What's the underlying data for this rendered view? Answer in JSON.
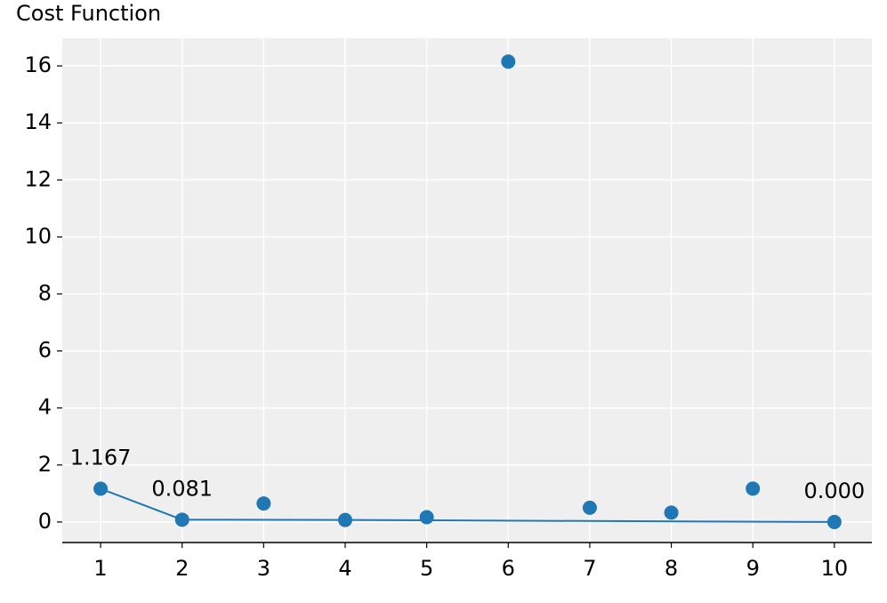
{
  "chart_data": {
    "type": "scatter",
    "title": "Cost Function",
    "series": [
      {
        "type": "scatter",
        "color": "#1f77b4",
        "x": [
          1,
          2,
          3,
          4,
          5,
          6,
          7,
          8,
          9,
          10
        ],
        "values": [
          1.167,
          0.081,
          0.65,
          0.07,
          0.17,
          16.15,
          0.5,
          0.33,
          1.17,
          0.0
        ]
      },
      {
        "type": "line",
        "color": "#1f77b4",
        "x": [
          1,
          2,
          4,
          10
        ],
        "values": [
          1.167,
          0.081,
          0.07,
          0.0
        ]
      }
    ],
    "annotations": [
      {
        "text": "1.167",
        "x": 1,
        "y": 1.167
      },
      {
        "text": "0.081",
        "x": 2,
        "y": 0.081
      },
      {
        "text": "0.000",
        "x": 10,
        "y": 0.0
      }
    ],
    "xlim": [
      0.53,
      10.46
    ],
    "xticks": [
      1,
      2,
      3,
      4,
      5,
      6,
      7,
      8,
      9,
      10
    ],
    "ylim": [
      -0.72,
      16.97
    ],
    "yticks": [
      0,
      2,
      4,
      6,
      8,
      10,
      12,
      14,
      16
    ],
    "grid": true
  }
}
